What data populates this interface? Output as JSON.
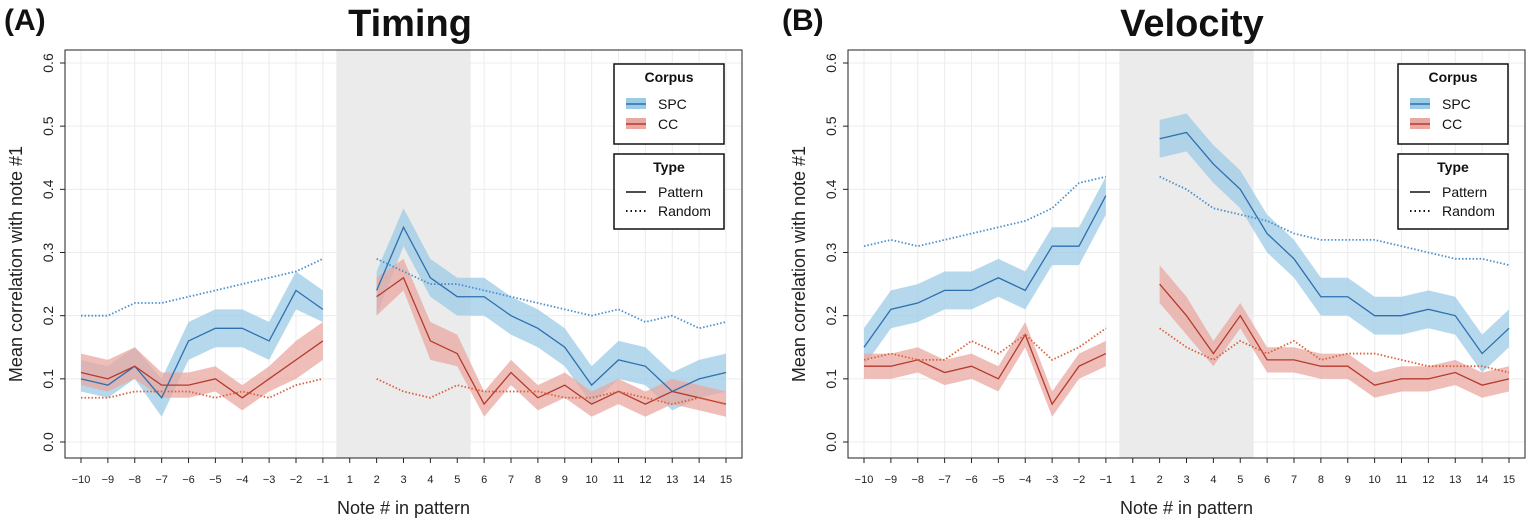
{
  "colors": {
    "spc_line": "#2e6fb0",
    "spc_band": "#9ccbe6",
    "cc_line": "#b53a2e",
    "cc_band": "#eaa8a2",
    "random_spc": "#4a90d0",
    "random_cc": "#d9623a",
    "shade": "#ebebeb",
    "grid": "#ececec"
  },
  "chart_data": [
    {
      "type": "line",
      "panel_label": "(A)",
      "title": "Timing",
      "xlabel": "Note # in pattern",
      "ylabel": "Mean correlation with note #1",
      "x_ticks": [
        "−10",
        "−9",
        "−8",
        "−7",
        "−6",
        "−5",
        "−4",
        "−3",
        "−2",
        "−1",
        "1",
        "2",
        "3",
        "4",
        "5",
        "6",
        "7",
        "8",
        "9",
        "10",
        "11",
        "12",
        "13",
        "14",
        "15"
      ],
      "y_ticks": [
        "0.0",
        "0.1",
        "0.2",
        "0.3",
        "0.4",
        "0.5",
        "0.6"
      ],
      "ylim": [
        0,
        0.6
      ],
      "shaded_x_range": [
        "1",
        "5"
      ],
      "legend": {
        "corpus_title": "Corpus",
        "corpus_items": [
          "SPC",
          "CC"
        ],
        "type_title": "Type",
        "type_items": [
          "Pattern",
          "Random"
        ],
        "placement": "top-right"
      },
      "series": [
        {
          "name": "SPC",
          "type": "Pattern",
          "segments": [
            {
              "x": [
                "−10",
                "−9",
                "−8",
                "−7",
                "−6",
                "−5",
                "−4",
                "−3",
                "−2",
                "−1"
              ],
              "values": [
                0.1,
                0.09,
                0.12,
                0.07,
                0.16,
                0.18,
                0.18,
                0.16,
                0.24,
                0.21
              ],
              "lower": [
                0.08,
                0.07,
                0.1,
                0.04,
                0.13,
                0.15,
                0.15,
                0.13,
                0.21,
                0.19
              ],
              "upper": [
                0.13,
                0.12,
                0.15,
                0.1,
                0.19,
                0.21,
                0.21,
                0.19,
                0.27,
                0.24
              ]
            },
            {
              "x": [
                "2",
                "3",
                "4",
                "5",
                "6",
                "7",
                "8",
                "9",
                "10",
                "11",
                "12",
                "13",
                "14",
                "15"
              ],
              "values": [
                0.24,
                0.34,
                0.26,
                0.23,
                0.23,
                0.2,
                0.18,
                0.15,
                0.09,
                0.13,
                0.12,
                0.08,
                0.1,
                0.11
              ],
              "lower": [
                0.2,
                0.31,
                0.23,
                0.2,
                0.2,
                0.17,
                0.15,
                0.12,
                0.06,
                0.1,
                0.09,
                0.05,
                0.07,
                0.08
              ],
              "upper": [
                0.27,
                0.37,
                0.29,
                0.26,
                0.26,
                0.23,
                0.21,
                0.18,
                0.12,
                0.16,
                0.15,
                0.11,
                0.13,
                0.14
              ]
            }
          ]
        },
        {
          "name": "CC",
          "type": "Pattern",
          "segments": [
            {
              "x": [
                "−10",
                "−9",
                "−8",
                "−7",
                "−6",
                "−5",
                "−4",
                "−3",
                "−2",
                "−1"
              ],
              "values": [
                0.11,
                0.1,
                0.12,
                0.09,
                0.09,
                0.1,
                0.07,
                0.1,
                0.13,
                0.16
              ],
              "lower": [
                0.09,
                0.08,
                0.1,
                0.07,
                0.07,
                0.08,
                0.05,
                0.08,
                0.1,
                0.13
              ],
              "upper": [
                0.14,
                0.13,
                0.15,
                0.11,
                0.11,
                0.12,
                0.09,
                0.12,
                0.16,
                0.19
              ]
            },
            {
              "x": [
                "2",
                "3",
                "4",
                "5",
                "6",
                "7",
                "8",
                "9",
                "10",
                "11",
                "12",
                "13",
                "14",
                "15"
              ],
              "values": [
                0.23,
                0.26,
                0.16,
                0.14,
                0.06,
                0.11,
                0.07,
                0.09,
                0.06,
                0.08,
                0.06,
                0.08,
                0.07,
                0.06
              ],
              "lower": [
                0.2,
                0.24,
                0.13,
                0.12,
                0.04,
                0.09,
                0.05,
                0.07,
                0.04,
                0.06,
                0.04,
                0.06,
                0.05,
                0.04
              ],
              "upper": [
                0.26,
                0.29,
                0.19,
                0.17,
                0.08,
                0.13,
                0.09,
                0.11,
                0.08,
                0.1,
                0.08,
                0.1,
                0.09,
                0.08
              ]
            }
          ]
        },
        {
          "name": "SPC",
          "type": "Random",
          "segments": [
            {
              "x": [
                "−10",
                "−9",
                "−8",
                "−7",
                "−6",
                "−5",
                "−4",
                "−3",
                "−2",
                "−1"
              ],
              "values": [
                0.2,
                0.2,
                0.22,
                0.22,
                0.23,
                0.24,
                0.25,
                0.26,
                0.27,
                0.29
              ]
            },
            {
              "x": [
                "2",
                "3",
                "4",
                "5",
                "6",
                "7",
                "8",
                "9",
                "10",
                "11",
                "12",
                "13",
                "14",
                "15"
              ],
              "values": [
                0.29,
                0.27,
                0.25,
                0.25,
                0.24,
                0.23,
                0.22,
                0.21,
                0.2,
                0.21,
                0.19,
                0.2,
                0.18,
                0.19
              ]
            }
          ]
        },
        {
          "name": "CC",
          "type": "Random",
          "segments": [
            {
              "x": [
                "−10",
                "−9",
                "−8",
                "−7",
                "−6",
                "−5",
                "−4",
                "−3",
                "−2",
                "−1"
              ],
              "values": [
                0.07,
                0.07,
                0.08,
                0.08,
                0.08,
                0.07,
                0.08,
                0.07,
                0.09,
                0.1
              ]
            },
            {
              "x": [
                "2",
                "3",
                "4",
                "5",
                "6",
                "7",
                "8",
                "9",
                "10",
                "11",
                "12",
                "13",
                "14",
                "15"
              ],
              "values": [
                0.1,
                0.08,
                0.07,
                0.09,
                0.08,
                0.08,
                0.08,
                0.07,
                0.07,
                0.08,
                0.07,
                0.06,
                0.07,
                0.06
              ]
            }
          ]
        }
      ]
    },
    {
      "type": "line",
      "panel_label": "(B)",
      "title": "Velocity",
      "xlabel": "Note # in pattern",
      "ylabel": "Mean correlation with note #1",
      "x_ticks": [
        "−10",
        "−9",
        "−8",
        "−7",
        "−6",
        "−5",
        "−4",
        "−3",
        "−2",
        "−1",
        "1",
        "2",
        "3",
        "4",
        "5",
        "6",
        "7",
        "8",
        "9",
        "10",
        "11",
        "12",
        "13",
        "14",
        "15"
      ],
      "y_ticks": [
        "0.0",
        "0.1",
        "0.2",
        "0.3",
        "0.4",
        "0.5",
        "0.6"
      ],
      "ylim": [
        0,
        0.6
      ],
      "shaded_x_range": [
        "1",
        "5"
      ],
      "legend": {
        "corpus_title": "Corpus",
        "corpus_items": [
          "SPC",
          "CC"
        ],
        "type_title": "Type",
        "type_items": [
          "Pattern",
          "Random"
        ],
        "placement": "top-right"
      },
      "series": [
        {
          "name": "SPC",
          "type": "Pattern",
          "segments": [
            {
              "x": [
                "−10",
                "−9",
                "−8",
                "−7",
                "−6",
                "−5",
                "−4",
                "−3",
                "−2",
                "−1"
              ],
              "values": [
                0.15,
                0.21,
                0.22,
                0.24,
                0.24,
                0.26,
                0.24,
                0.31,
                0.31,
                0.39
              ],
              "lower": [
                0.12,
                0.18,
                0.19,
                0.21,
                0.21,
                0.23,
                0.21,
                0.28,
                0.28,
                0.36
              ],
              "upper": [
                0.18,
                0.24,
                0.25,
                0.27,
                0.27,
                0.29,
                0.27,
                0.34,
                0.34,
                0.42
              ]
            },
            {
              "x": [
                "2",
                "3",
                "4",
                "5",
                "6",
                "7",
                "8",
                "9",
                "10",
                "11",
                "12",
                "13",
                "14",
                "15"
              ],
              "values": [
                0.48,
                0.49,
                0.44,
                0.4,
                0.33,
                0.29,
                0.23,
                0.23,
                0.2,
                0.2,
                0.21,
                0.2,
                0.14,
                0.18
              ],
              "lower": [
                0.45,
                0.46,
                0.41,
                0.37,
                0.3,
                0.26,
                0.2,
                0.2,
                0.17,
                0.17,
                0.18,
                0.17,
                0.11,
                0.15
              ],
              "upper": [
                0.51,
                0.52,
                0.47,
                0.43,
                0.36,
                0.32,
                0.26,
                0.26,
                0.23,
                0.23,
                0.24,
                0.23,
                0.17,
                0.21
              ]
            }
          ]
        },
        {
          "name": "CC",
          "type": "Pattern",
          "segments": [
            {
              "x": [
                "−10",
                "−9",
                "−8",
                "−7",
                "−6",
                "−5",
                "−4",
                "−3",
                "−2",
                "−1"
              ],
              "values": [
                0.12,
                0.12,
                0.13,
                0.11,
                0.12,
                0.1,
                0.17,
                0.06,
                0.12,
                0.14
              ],
              "lower": [
                0.1,
                0.1,
                0.11,
                0.09,
                0.1,
                0.08,
                0.15,
                0.04,
                0.1,
                0.12
              ],
              "upper": [
                0.14,
                0.14,
                0.15,
                0.13,
                0.14,
                0.12,
                0.19,
                0.08,
                0.14,
                0.16
              ]
            },
            {
              "x": [
                "2",
                "3",
                "4",
                "5",
                "6",
                "7",
                "8",
                "9",
                "10",
                "11",
                "12",
                "13",
                "14",
                "15"
              ],
              "values": [
                0.25,
                0.2,
                0.14,
                0.2,
                0.13,
                0.13,
                0.12,
                0.12,
                0.09,
                0.1,
                0.1,
                0.11,
                0.09,
                0.1
              ],
              "lower": [
                0.22,
                0.17,
                0.12,
                0.18,
                0.11,
                0.11,
                0.1,
                0.1,
                0.07,
                0.08,
                0.08,
                0.09,
                0.07,
                0.08
              ],
              "upper": [
                0.28,
                0.23,
                0.16,
                0.22,
                0.15,
                0.15,
                0.14,
                0.14,
                0.11,
                0.12,
                0.12,
                0.13,
                0.11,
                0.12
              ]
            }
          ]
        },
        {
          "name": "SPC",
          "type": "Random",
          "segments": [
            {
              "x": [
                "−10",
                "−9",
                "−8",
                "−7",
                "−6",
                "−5",
                "−4",
                "−3",
                "−2",
                "−1"
              ],
              "values": [
                0.31,
                0.32,
                0.31,
                0.32,
                0.33,
                0.34,
                0.35,
                0.37,
                0.41,
                0.42
              ]
            },
            {
              "x": [
                "2",
                "3",
                "4",
                "5",
                "6",
                "7",
                "8",
                "9",
                "10",
                "11",
                "12",
                "13",
                "14",
                "15"
              ],
              "values": [
                0.42,
                0.4,
                0.37,
                0.36,
                0.35,
                0.33,
                0.32,
                0.32,
                0.32,
                0.31,
                0.3,
                0.29,
                0.29,
                0.28
              ]
            }
          ]
        },
        {
          "name": "CC",
          "type": "Random",
          "segments": [
            {
              "x": [
                "−10",
                "−9",
                "−8",
                "−7",
                "−6",
                "−5",
                "−4",
                "−3",
                "−2",
                "−1"
              ],
              "values": [
                0.13,
                0.14,
                0.13,
                0.13,
                0.16,
                0.14,
                0.17,
                0.13,
                0.15,
                0.18
              ]
            },
            {
              "x": [
                "2",
                "3",
                "4",
                "5",
                "6",
                "7",
                "8",
                "9",
                "10",
                "11",
                "12",
                "13",
                "14",
                "15"
              ],
              "values": [
                0.18,
                0.15,
                0.13,
                0.16,
                0.14,
                0.16,
                0.13,
                0.14,
                0.14,
                0.13,
                0.12,
                0.12,
                0.12,
                0.11
              ]
            }
          ]
        }
      ]
    }
  ]
}
